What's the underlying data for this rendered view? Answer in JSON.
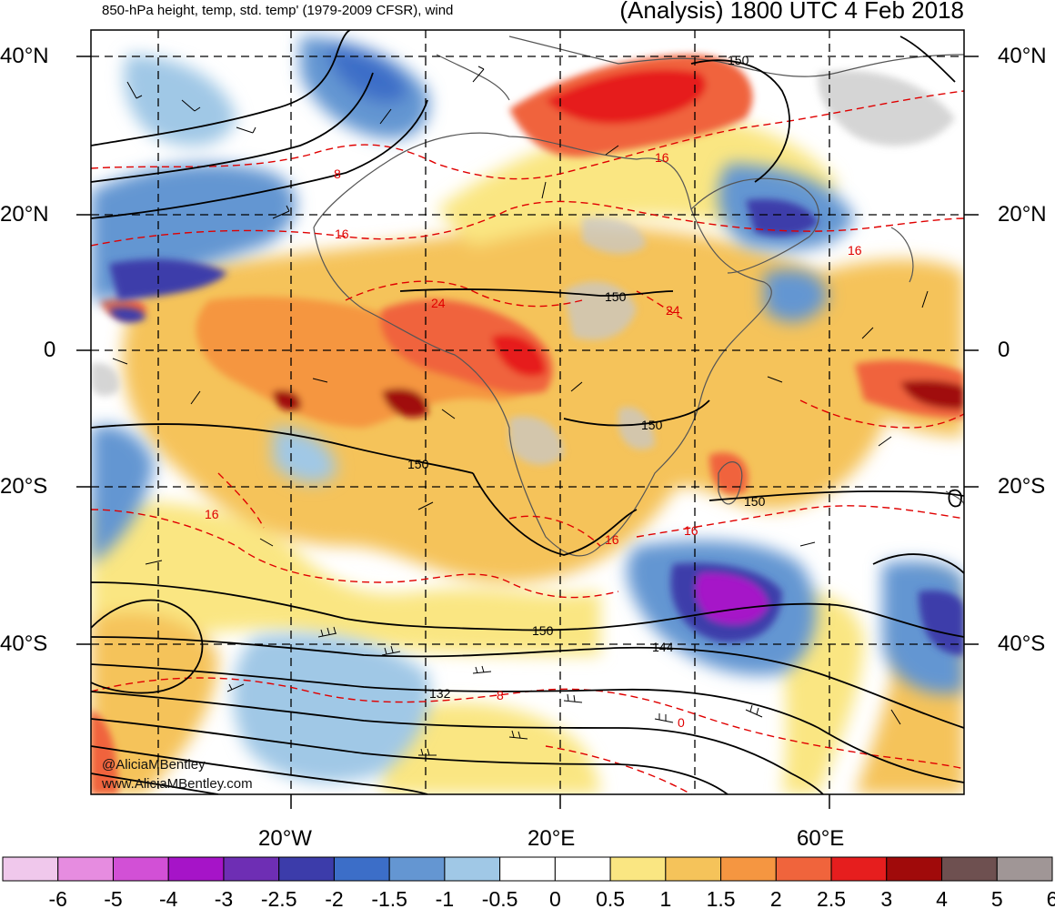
{
  "header": {
    "title_left": "850-hPa height, temp, std. temp' (1979-2009 CFSR), wind",
    "title_right": "(Analysis) 1800 UTC 4 Feb 2018"
  },
  "axes": {
    "lat_labels_left": [
      "40°N",
      "20°N",
      "0",
      "20°S",
      "40°S"
    ],
    "lat_labels_right": [
      "40°N",
      "20°N",
      "0",
      "20°S",
      "40°S"
    ],
    "lon_labels": [
      "20°W",
      "20°E",
      "60°E"
    ]
  },
  "contour_labels": {
    "height": [
      "150",
      "150",
      "150",
      "150",
      "150",
      "150",
      "144",
      "132"
    ],
    "temperature": [
      "8",
      "16",
      "24",
      "24",
      "16",
      "16",
      "16",
      "16",
      "8",
      "0",
      "16"
    ]
  },
  "credits": {
    "handle": "@AliciaMBentley",
    "site": "www.AliciaMBentley.com"
  },
  "colorbar": {
    "ticks": [
      "-6",
      "-5",
      "-4",
      "-3",
      "-2.5",
      "-2",
      "-1.5",
      "-1",
      "-0.5",
      "0",
      "0.5",
      "1",
      "1.5",
      "2",
      "2.5",
      "3",
      "4",
      "5",
      "6"
    ],
    "colors": [
      "#f0c8ec",
      "#e68ce0",
      "#d250d6",
      "#a614c8",
      "#6e2eb4",
      "#3c3caa",
      "#3c6ec8",
      "#6496d2",
      "#a0c8e6",
      "#ffffff",
      "#ffffff",
      "#fae682",
      "#f5c35a",
      "#f59641",
      "#f0643c",
      "#e61e1e",
      "#a00a0a",
      "#6e5050",
      "#a09696"
    ]
  },
  "map": {
    "land_gray": "#c8c8c8",
    "height_contour_color": "#000000",
    "temp_contour_color": "#e00000"
  }
}
